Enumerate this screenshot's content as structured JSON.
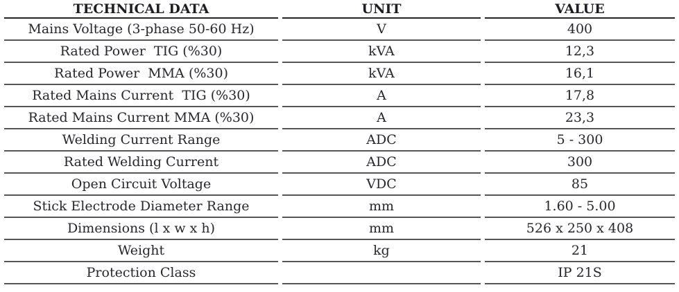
{
  "table": {
    "headers": [
      "TECHNICAL DATA",
      "UNIT",
      "VALUE"
    ],
    "rows": [
      {
        "parameter": "Mains Voltage (3-phase 50-60 Hz)",
        "unit": "V",
        "value": "400"
      },
      {
        "parameter": "Rated Power  TIG (%30)",
        "unit": "kVA",
        "value": "12,3"
      },
      {
        "parameter": "Rated Power  MMA (%30)",
        "unit": "kVA",
        "value": "16,1"
      },
      {
        "parameter": "Rated Mains Current  TIG (%30)",
        "unit": "A",
        "value": "17,8"
      },
      {
        "parameter": "Rated Mains Current MMA (%30)",
        "unit": "A",
        "value": "23,3"
      },
      {
        "parameter": "Welding Current Range",
        "unit": "ADC",
        "value": "5 - 300"
      },
      {
        "parameter": "Rated Welding Current",
        "unit": "ADC",
        "value": "300"
      },
      {
        "parameter": "Open Circuit Voltage",
        "unit": "VDC",
        "value": "85"
      },
      {
        "parameter": "Stick Electrode Diameter Range",
        "unit": "mm",
        "value": "1.60 - 5.00"
      },
      {
        "parameter": "Dimensions (l x w x h)",
        "unit": "mm",
        "value": "526 x 250 x 408"
      },
      {
        "parameter": "Weight",
        "unit": "kg",
        "value": "21"
      },
      {
        "parameter": "Protection Class",
        "unit": "",
        "value": "IP 21S"
      }
    ],
    "colors": {
      "text": "#26262b",
      "header_text": "#1d1d24",
      "row_line": "#555555",
      "header_line": "#232323",
      "background": "#ffffff"
    }
  }
}
